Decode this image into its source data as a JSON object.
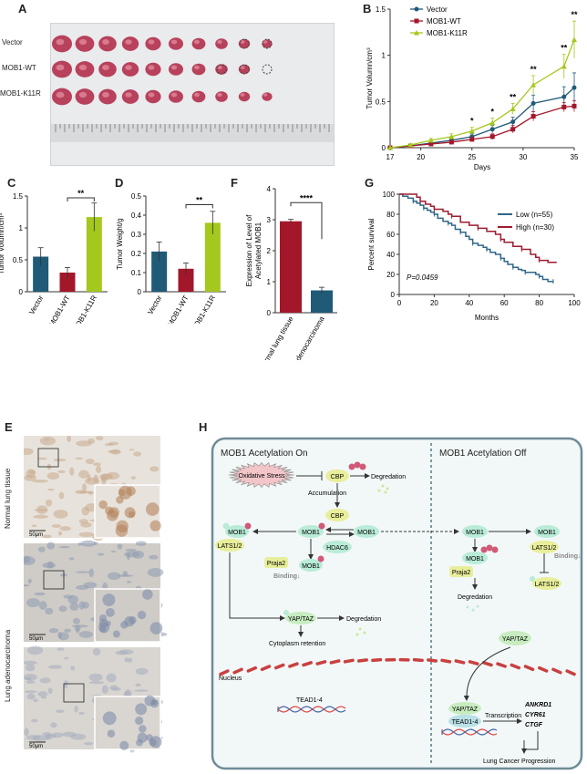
{
  "panels": {
    "A": "A",
    "B": "B",
    "C": "C",
    "D": "D",
    "E": "E",
    "F": "F",
    "G": "G",
    "H": "H"
  },
  "colors": {
    "vector": "#1f5a77",
    "wt": "#a3172b",
    "k11r": "#a4c81d",
    "low": "#2f6788",
    "high": "#9e1b2f",
    "teal_bg": "#f1f7f6",
    "box_border": "#6f8c97"
  },
  "panelA": {
    "rows": [
      "Vector",
      "MOB1-WT",
      "MOB1-K11R"
    ],
    "tumor_counts": [
      10,
      9,
      10
    ],
    "empty_counts": [
      2,
      3,
      0
    ]
  },
  "chart_data": [
    {
      "type": "line",
      "id": "B",
      "xlabel": "Days",
      "ylabel": "Tumor Volumn/cm³",
      "x": [
        17,
        19,
        21,
        23,
        25,
        27,
        29,
        31,
        34,
        35
      ],
      "xticks": [
        17,
        20,
        25,
        30,
        35
      ],
      "yticks": [
        0.0,
        0.5,
        1.0,
        1.5
      ],
      "xlim": [
        17,
        35
      ],
      "ylim": [
        0,
        1.5
      ],
      "series": [
        {
          "name": "Vector",
          "marker": "circle",
          "values": [
            0.0,
            0.02,
            0.05,
            0.08,
            0.12,
            0.2,
            0.28,
            0.48,
            0.55,
            0.65
          ],
          "err": [
            0,
            0.01,
            0.02,
            0.03,
            0.03,
            0.04,
            0.05,
            0.09,
            0.11,
            0.16
          ]
        },
        {
          "name": "MOB1-WT",
          "marker": "square",
          "values": [
            0.0,
            0.02,
            0.04,
            0.06,
            0.09,
            0.12,
            0.2,
            0.34,
            0.44,
            0.45
          ],
          "err": [
            0,
            0.01,
            0.02,
            0.02,
            0.02,
            0.03,
            0.04,
            0.05,
            0.05,
            0.06
          ]
        },
        {
          "name": "MOB1-K11R",
          "marker": "triangle",
          "values": [
            0.0,
            0.03,
            0.08,
            0.12,
            0.18,
            0.27,
            0.42,
            0.68,
            0.88,
            1.17
          ],
          "err": [
            0,
            0.01,
            0.02,
            0.03,
            0.04,
            0.05,
            0.06,
            0.1,
            0.13,
            0.2
          ]
        }
      ],
      "annotations": [
        {
          "x": 25,
          "text": "*"
        },
        {
          "x": 27,
          "text": "*"
        },
        {
          "x": 29,
          "text": "**"
        },
        {
          "x": 31,
          "text": "**"
        },
        {
          "x": 34,
          "text": "**"
        },
        {
          "x": 35,
          "text": "**"
        }
      ]
    },
    {
      "type": "bar",
      "id": "C",
      "ylabel": "Tumor Volumn/cm³",
      "categories": [
        "Vector",
        "MOB1-WT",
        "MOB1-K11R"
      ],
      "values": [
        0.55,
        0.3,
        1.17
      ],
      "err": [
        0.14,
        0.08,
        0.22
      ],
      "ylim": [
        0,
        1.5
      ],
      "yticks": [
        0.0,
        0.5,
        1.0,
        1.5
      ],
      "sig": "**"
    },
    {
      "type": "bar",
      "id": "D",
      "ylabel": "Tumor Weight/g",
      "categories": [
        "Vector",
        "MOB1-WT",
        "MOB1-K11R"
      ],
      "values": [
        0.21,
        0.12,
        0.36
      ],
      "err": [
        0.05,
        0.03,
        0.06
      ],
      "ylim": [
        0,
        0.5
      ],
      "yticks": [
        0.0,
        0.1,
        0.2,
        0.3,
        0.4,
        0.5
      ],
      "sig": "**"
    },
    {
      "type": "bar",
      "id": "F",
      "ylabel": "Expression of Level of Acetylated MOB1",
      "categories": [
        "Normal lung tissue",
        "Lung adenocarcinoma"
      ],
      "values": [
        2.95,
        0.72
      ],
      "err": [
        0.06,
        0.1
      ],
      "ylim": [
        0,
        4
      ],
      "yticks": [
        0,
        1,
        2,
        3,
        4
      ],
      "sig": "****"
    },
    {
      "type": "line",
      "id": "G",
      "xlabel": "Months",
      "ylabel": "Percent survival",
      "xticks": [
        0,
        20,
        40,
        60,
        80,
        100
      ],
      "yticks": [
        0,
        20,
        40,
        60,
        80,
        100
      ],
      "xlim": [
        0,
        100
      ],
      "ylim": [
        0,
        100
      ],
      "series": [
        {
          "name": "Low (n=55)",
          "x": [
            0,
            2,
            5,
            8,
            10,
            12,
            14,
            16,
            18,
            20,
            22,
            25,
            28,
            30,
            32,
            35,
            38,
            40,
            42,
            45,
            48,
            50,
            52,
            55,
            58,
            60,
            62,
            65,
            68,
            70,
            72,
            75,
            78,
            80,
            82,
            85,
            88
          ],
          "values": [
            100,
            98,
            96,
            93,
            91,
            89,
            86,
            84,
            82,
            80,
            76,
            73,
            71,
            69,
            65,
            62,
            58,
            55,
            51,
            49,
            47,
            45,
            42,
            40,
            36,
            33,
            30,
            27,
            25,
            24,
            22,
            22,
            20,
            18,
            15,
            13,
            13
          ]
        },
        {
          "name": "High (n=30)",
          "x": [
            0,
            5,
            10,
            12,
            15,
            18,
            20,
            25,
            28,
            30,
            35,
            40,
            45,
            50,
            55,
            58,
            60,
            65,
            70,
            75,
            78,
            80,
            85,
            90
          ],
          "values": [
            100,
            100,
            97,
            93,
            90,
            88,
            85,
            83,
            80,
            78,
            72,
            69,
            66,
            63,
            60,
            55,
            52,
            48,
            45,
            40,
            37,
            34,
            32,
            32
          ]
        }
      ],
      "annotation": "P=0.0459"
    }
  ],
  "panelE": {
    "labels": [
      "Normal lung tissue",
      "Lung adenocarcinoma"
    ],
    "scale": "50μm"
  },
  "panelH": {
    "left_title": "MOB1 Acetylation On",
    "right_title": "MOB1 Acetylation Off",
    "oxidative": "Oxidative Stress",
    "cbp": "CBP",
    "degradation": "Degredation",
    "accumulation": "Accumulation",
    "mob1": "MOB1",
    "hdac6": "HDAC6",
    "lats": "LATS1/2",
    "praja2": "Praja2",
    "binding": "Binding↓",
    "yaptaz": "YAP/TAZ",
    "cyto": "Cytoplasm retention",
    "nucleus": "Nucleus",
    "tead": "TEAD1-4",
    "transcription": "Transcription",
    "genes": [
      "ANKRD1",
      "CYR61",
      "CTGF"
    ],
    "progression": "Lung Cancer Progression",
    "ac": "Ac",
    "ub": "Ub",
    "p": "P"
  }
}
